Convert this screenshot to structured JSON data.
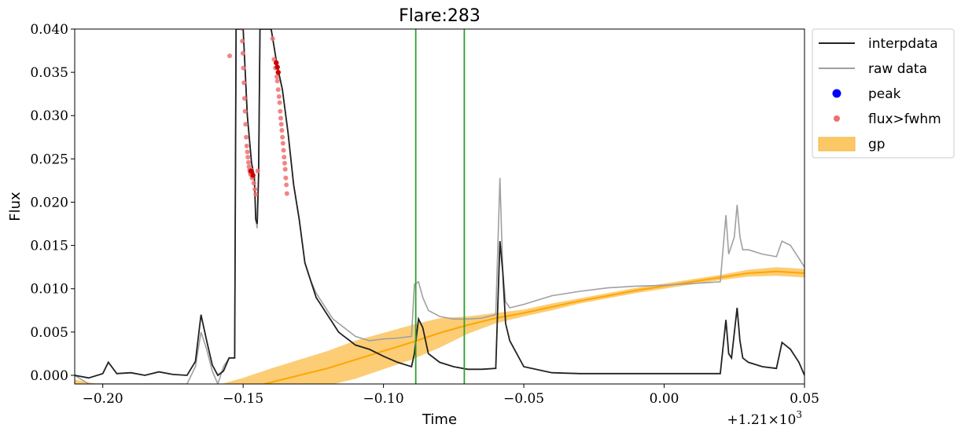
{
  "chart_data": {
    "type": "line",
    "title": "Flare:283",
    "xlabel": "Time",
    "ylabel": "Flux",
    "x_offset_label": "+1.21×10",
    "x_offset_exponent": "3",
    "xlim": [
      -0.21,
      0.05
    ],
    "ylim": [
      -0.001,
      0.04
    ],
    "x_ticks": [
      -0.2,
      -0.15,
      -0.1,
      -0.05,
      0.0,
      0.05
    ],
    "x_tick_labels": [
      "−0.20",
      "−0.15",
      "−0.10",
      "−0.05",
      "0.00",
      "0.05"
    ],
    "y_ticks": [
      0.0,
      0.005,
      0.01,
      0.015,
      0.02,
      0.025,
      0.03,
      0.035,
      0.04
    ],
    "y_tick_labels": [
      "0.000",
      "0.005",
      "0.010",
      "0.015",
      "0.020",
      "0.025",
      "0.030",
      "0.035",
      "0.040"
    ],
    "grid": false,
    "legend_position": "outside-top-right",
    "vertical_lines": [
      {
        "x": -0.0885,
        "color": "#2ca02c"
      },
      {
        "x": -0.0712,
        "color": "#2ca02c"
      }
    ],
    "legend": [
      {
        "label": "interpdata",
        "kind": "line",
        "color": "#222222"
      },
      {
        "label": "raw data",
        "kind": "line",
        "color": "#a0a0a0"
      },
      {
        "label": "peak",
        "kind": "marker",
        "color": "#0000ff"
      },
      {
        "label": "flux>fwhm",
        "kind": "marker-small",
        "color": "#f07070"
      },
      {
        "label": "gp",
        "kind": "patch",
        "color": "#fcc866"
      }
    ],
    "series": [
      {
        "name": "interpdata",
        "color": "#222222",
        "x": [
          -0.21,
          -0.205,
          -0.2,
          -0.198,
          -0.195,
          -0.19,
          -0.185,
          -0.18,
          -0.175,
          -0.17,
          -0.167,
          -0.165,
          -0.163,
          -0.161,
          -0.159,
          -0.157,
          -0.155,
          -0.153,
          -0.1525,
          -0.152,
          -0.15,
          -0.1485,
          -0.147,
          -0.146,
          -0.1455,
          -0.145,
          -0.1445,
          -0.144,
          -0.142,
          -0.14,
          -0.139,
          -0.138,
          -0.136,
          -0.134,
          -0.132,
          -0.13,
          -0.128,
          -0.126,
          -0.124,
          -0.122,
          -0.12,
          -0.118,
          -0.116,
          -0.114,
          -0.112,
          -0.11,
          -0.105,
          -0.1,
          -0.095,
          -0.09,
          -0.089,
          -0.0875,
          -0.086,
          -0.084,
          -0.08,
          -0.075,
          -0.07,
          -0.065,
          -0.06,
          -0.0585,
          -0.0575,
          -0.0565,
          -0.055,
          -0.05,
          -0.04,
          -0.03,
          -0.02,
          -0.01,
          0.0,
          0.01,
          0.02,
          0.022,
          0.023,
          0.024,
          0.026,
          0.027,
          0.028,
          0.03,
          0.035,
          0.04,
          0.042,
          0.045,
          0.048,
          0.05
        ],
        "y": [
          0.0,
          -0.0003,
          0.0002,
          0.0015,
          0.0002,
          0.0003,
          0.0,
          0.0004,
          0.0001,
          0.0,
          0.0016,
          0.007,
          0.004,
          0.0012,
          0.0,
          0.0005,
          0.002,
          0.002,
          0.04,
          0.04,
          0.04,
          0.03,
          0.0245,
          0.023,
          0.018,
          0.0175,
          0.023,
          0.04,
          0.04,
          0.04,
          0.038,
          0.036,
          0.033,
          0.028,
          0.022,
          0.018,
          0.013,
          0.011,
          0.009,
          0.008,
          0.007,
          0.006,
          0.005,
          0.0045,
          0.004,
          0.0035,
          0.003,
          0.0022,
          0.0015,
          0.001,
          0.0025,
          0.0065,
          0.0055,
          0.0025,
          0.0015,
          0.001,
          0.0007,
          0.0007,
          0.0008,
          0.0155,
          0.012,
          0.006,
          0.004,
          0.001,
          0.0003,
          0.0002,
          0.0002,
          0.0002,
          0.0002,
          0.0002,
          0.0002,
          0.0064,
          0.0025,
          0.002,
          0.0078,
          0.004,
          0.002,
          0.0015,
          0.001,
          0.0008,
          0.0038,
          0.003,
          0.0015,
          0.0
        ]
      },
      {
        "name": "raw data",
        "color": "#a0a0a0",
        "x": [
          -0.21,
          -0.205,
          -0.2,
          -0.19,
          -0.18,
          -0.17,
          -0.167,
          -0.165,
          -0.163,
          -0.161,
          -0.159,
          -0.157,
          -0.155,
          -0.153,
          -0.1525,
          -0.152,
          -0.15,
          -0.1485,
          -0.147,
          -0.146,
          -0.1455,
          -0.145,
          -0.1445,
          -0.144,
          -0.142,
          -0.14,
          -0.139,
          -0.138,
          -0.136,
          -0.134,
          -0.132,
          -0.13,
          -0.128,
          -0.126,
          -0.124,
          -0.122,
          -0.12,
          -0.118,
          -0.116,
          -0.114,
          -0.112,
          -0.11,
          -0.105,
          -0.1,
          -0.095,
          -0.09,
          -0.089,
          -0.0875,
          -0.086,
          -0.084,
          -0.08,
          -0.075,
          -0.07,
          -0.065,
          -0.06,
          -0.0585,
          -0.0575,
          -0.0565,
          -0.055,
          -0.05,
          -0.04,
          -0.03,
          -0.02,
          -0.01,
          0.0,
          0.01,
          0.02,
          0.022,
          0.023,
          0.025,
          0.026,
          0.027,
          0.028,
          0.03,
          0.035,
          0.04,
          0.042,
          0.045,
          0.048,
          0.05
        ],
        "y": [
          0.0,
          -0.001,
          -0.001,
          -0.001,
          -0.001,
          -0.001,
          0.001,
          0.005,
          0.003,
          0.0005,
          -0.001,
          0.001,
          0.002,
          0.002,
          0.04,
          0.04,
          0.04,
          0.03,
          0.0245,
          0.023,
          0.018,
          0.017,
          0.023,
          0.04,
          0.04,
          0.04,
          0.038,
          0.036,
          0.033,
          0.028,
          0.022,
          0.018,
          0.013,
          0.011,
          0.0095,
          0.0085,
          0.0075,
          0.0065,
          0.006,
          0.0055,
          0.005,
          0.0045,
          0.004,
          0.0042,
          0.0043,
          0.0045,
          0.0105,
          0.0108,
          0.009,
          0.0075,
          0.0068,
          0.0065,
          0.0065,
          0.0066,
          0.007,
          0.0228,
          0.012,
          0.0085,
          0.0078,
          0.0082,
          0.0092,
          0.0097,
          0.0101,
          0.0103,
          0.0104,
          0.0106,
          0.0108,
          0.0185,
          0.014,
          0.016,
          0.0197,
          0.016,
          0.0145,
          0.0145,
          0.014,
          0.0137,
          0.0155,
          0.015,
          0.0135,
          0.0125
        ]
      }
    ],
    "gp": {
      "name": "gp",
      "line_color": "#ffa500",
      "fill_color": "#fcc866",
      "x": [
        -0.21,
        -0.2,
        -0.19,
        -0.18,
        -0.17,
        -0.16,
        -0.15,
        -0.14,
        -0.13,
        -0.12,
        -0.11,
        -0.1,
        -0.09,
        -0.08,
        -0.07,
        -0.06,
        -0.05,
        -0.04,
        -0.03,
        -0.02,
        -0.01,
        0.0,
        0.01,
        0.02,
        0.03,
        0.04,
        0.05
      ],
      "mean": [
        -0.001,
        -0.0018,
        -0.0025,
        -0.003,
        -0.003,
        -0.0025,
        -0.0016,
        -0.0008,
        0.0,
        0.0008,
        0.0018,
        0.0028,
        0.0038,
        0.0049,
        0.0058,
        0.0066,
        0.0072,
        0.0079,
        0.0086,
        0.0092,
        0.0098,
        0.0103,
        0.0108,
        0.0113,
        0.0118,
        0.012,
        0.0118
      ],
      "lower": [
        -0.0015,
        -0.0025,
        -0.0033,
        -0.004,
        -0.0042,
        -0.0038,
        -0.0029,
        -0.0024,
        -0.0018,
        -0.0012,
        -0.0004,
        0.0007,
        0.0018,
        0.0032,
        0.0048,
        0.006,
        0.0068,
        0.0075,
        0.0083,
        0.0089,
        0.0095,
        0.01,
        0.0105,
        0.011,
        0.0114,
        0.0115,
        0.0113
      ],
      "upper": [
        -0.0005,
        -0.0011,
        -0.0017,
        -0.002,
        -0.0018,
        -0.0012,
        -0.0003,
        0.0008,
        0.0018,
        0.0028,
        0.004,
        0.0049,
        0.0058,
        0.0066,
        0.0068,
        0.0072,
        0.0076,
        0.0083,
        0.0089,
        0.0095,
        0.0101,
        0.0106,
        0.0111,
        0.0116,
        0.0122,
        0.0125,
        0.0123
      ]
    },
    "flux_fwhm_points": {
      "name": "flux>fwhm",
      "color": "#f07070",
      "x": [
        -0.1548,
        -0.1505,
        -0.1503,
        -0.1501,
        -0.1499,
        -0.1497,
        -0.1495,
        -0.1493,
        -0.1491,
        -0.1489,
        -0.1487,
        -0.1485,
        -0.1483,
        -0.1481,
        -0.1479,
        -0.1477,
        -0.1475,
        -0.1473,
        -0.1471,
        -0.147,
        -0.1468,
        -0.1462,
        -0.1458,
        -0.1455,
        -0.1448,
        -0.1395,
        -0.139,
        -0.1385,
        -0.138,
        -0.1378,
        -0.1375,
        -0.1372,
        -0.137,
        -0.1368,
        -0.1366,
        -0.1364,
        -0.1362,
        -0.136,
        -0.1358,
        -0.1356,
        -0.1354,
        -0.1352,
        -0.135,
        -0.1348,
        -0.1346,
        -0.1344
      ],
      "y": [
        0.0369,
        0.0401,
        0.0386,
        0.0372,
        0.0355,
        0.0338,
        0.032,
        0.0305,
        0.029,
        0.0275,
        0.0265,
        0.0258,
        0.0252,
        0.0246,
        0.0241,
        0.0237,
        0.0234,
        0.0232,
        0.0235,
        0.0237,
        0.0228,
        0.0222,
        0.0215,
        0.0209,
        0.0236,
        0.0389,
        0.0365,
        0.0355,
        0.0345,
        0.034,
        0.033,
        0.0322,
        0.0315,
        0.0305,
        0.0297,
        0.029,
        0.0283,
        0.0275,
        0.0268,
        0.026,
        0.0252,
        0.0245,
        0.0238,
        0.0228,
        0.022,
        0.021
      ]
    },
    "peak_points": {
      "name": "peak",
      "color": "#cc0000",
      "x": [
        -0.1472,
        -0.1465,
        -0.1382,
        -0.1378,
        -0.1375
      ],
      "y": [
        0.0236,
        0.0231,
        0.0361,
        0.0356,
        0.035
      ]
    }
  }
}
